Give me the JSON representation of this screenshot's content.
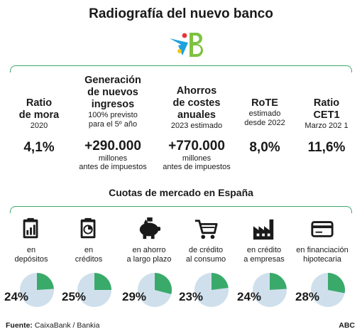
{
  "title": "Radiografía del nuevo banco",
  "colors": {
    "green": "#3aaa6b",
    "light_blue": "#cfe0ec",
    "logo_blue": "#1ea2df",
    "logo_green": "#7ec241",
    "logo_red": "#e3343a",
    "logo_yellow": "#f5c518"
  },
  "kpis": [
    {
      "head": [
        "Ratio",
        "de mora"
      ],
      "sub": [
        "2020"
      ],
      "value": "4,1%",
      "unit": []
    },
    {
      "head": [
        "Generación",
        "de nuevos",
        "ingresos"
      ],
      "sub": [
        "100% previsto",
        "para el 5º año"
      ],
      "value": "+290.000",
      "unit": [
        "millones",
        "antes de impuestos"
      ]
    },
    {
      "head": [
        "Ahorros",
        "de costes",
        "anuales"
      ],
      "sub": [
        "2023 estimado"
      ],
      "value": "+770.000",
      "unit": [
        "millones",
        "antes de impuestos"
      ]
    },
    {
      "head": [
        "RoTE"
      ],
      "sub": [
        "estimado",
        "desde 2022"
      ],
      "value": "8,0%",
      "unit": []
    },
    {
      "head": [
        "Ratio",
        "CET1"
      ],
      "sub": [
        "Marzo 202  1"
      ],
      "value": "11,6%",
      "unit": []
    }
  ],
  "market_section_title": "Cuotas de mercado en España",
  "market_shares": [
    {
      "icon": "clipboard-chart-icon",
      "label": [
        "en",
        "depósitos"
      ],
      "percent_label": "24%",
      "share": 0.24
    },
    {
      "icon": "clipboard-pie-icon",
      "label": [
        "en",
        "créditos"
      ],
      "percent_label": "25%",
      "share": 0.25
    },
    {
      "icon": "piggy-bank-icon",
      "label": [
        "en ahorro",
        "a largo plazo"
      ],
      "percent_label": "29%",
      "share": 0.29
    },
    {
      "icon": "shopping-cart-icon",
      "label": [
        "de crédito",
        "al consumo"
      ],
      "percent_label": "23%",
      "share": 0.23
    },
    {
      "icon": "factory-icon",
      "label": [
        "en crédito",
        "a empresas"
      ],
      "percent_label": "24%",
      "share": 0.24
    },
    {
      "icon": "credit-card-icon",
      "label": [
        "en financiación",
        "hipotecaria"
      ],
      "percent_label": "28%",
      "share": 0.28
    }
  ],
  "footer": {
    "source_label": "Fuente:",
    "source_value": "CaixaBank / Bankia",
    "publisher": "ABC"
  }
}
